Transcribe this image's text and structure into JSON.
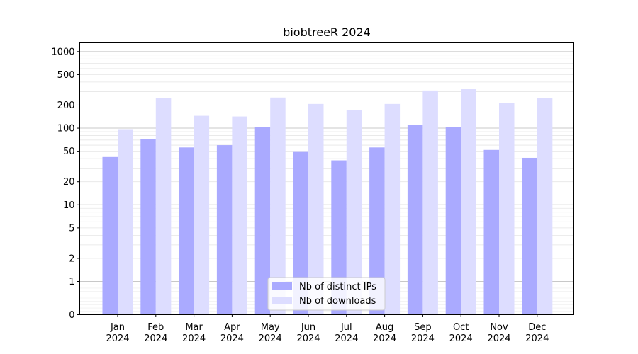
{
  "chart_data": {
    "type": "bar",
    "title": "biobtreeR 2024",
    "xlabel": "",
    "ylabel": "",
    "yscale": "symlog",
    "ylim": [
      0,
      1300
    ],
    "yticks": [
      0,
      1,
      2,
      5,
      10,
      20,
      50,
      100,
      200,
      500,
      1000
    ],
    "grid": true,
    "legend_position": "bottom-center",
    "categories": [
      {
        "month": "Jan",
        "year": "2024"
      },
      {
        "month": "Feb",
        "year": "2024"
      },
      {
        "month": "Mar",
        "year": "2024"
      },
      {
        "month": "Apr",
        "year": "2024"
      },
      {
        "month": "May",
        "year": "2024"
      },
      {
        "month": "Jun",
        "year": "2024"
      },
      {
        "month": "Jul",
        "year": "2024"
      },
      {
        "month": "Aug",
        "year": "2024"
      },
      {
        "month": "Sep",
        "year": "2024"
      },
      {
        "month": "Oct",
        "year": "2024"
      },
      {
        "month": "Nov",
        "year": "2024"
      },
      {
        "month": "Dec",
        "year": "2024"
      }
    ],
    "series": [
      {
        "name": "Nb of distinct IPs",
        "color": "#aaaaff",
        "values": [
          42,
          72,
          56,
          60,
          104,
          50,
          38,
          56,
          110,
          104,
          52,
          41
        ]
      },
      {
        "name": "Nb of downloads",
        "color": "#ddddff",
        "values": [
          97,
          247,
          145,
          142,
          251,
          207,
          174,
          207,
          310,
          325,
          214,
          247
        ]
      }
    ]
  }
}
